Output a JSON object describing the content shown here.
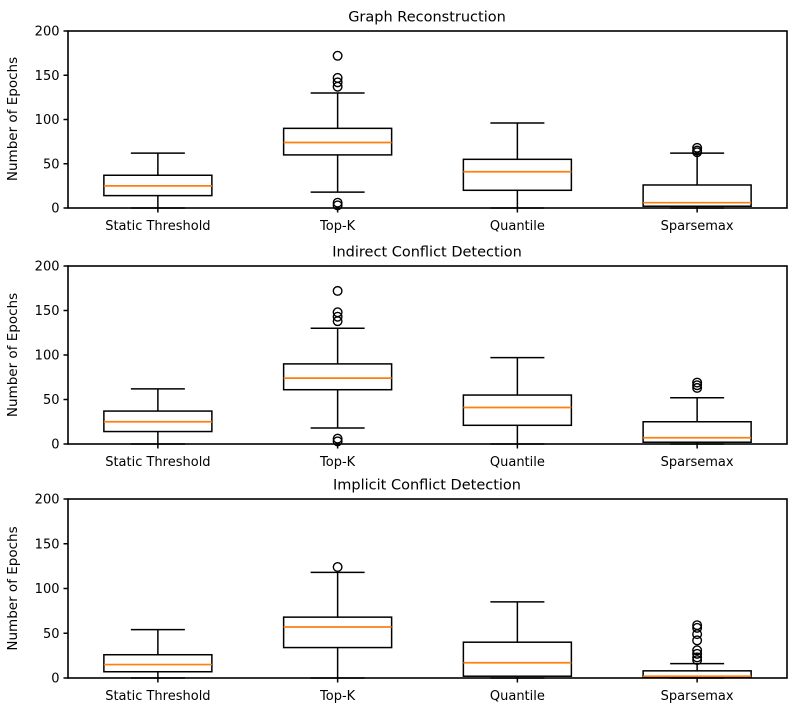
{
  "figure": {
    "background": "#ffffff",
    "axis_color": "#000000",
    "box_color": "#000000",
    "median_color": "#ff7f0e",
    "outlier_marker": "open-circle"
  },
  "chart_data": [
    {
      "type": "boxplot",
      "title": "Graph Reconstruction",
      "ylabel": "Number of Epochs",
      "xlabel": "",
      "ylim": [
        0,
        200
      ],
      "yticks": [
        0,
        50,
        100,
        150,
        200
      ],
      "grid": false,
      "categories": [
        "Static Threshold",
        "Top-K",
        "Quantile",
        "Sparsemax"
      ],
      "boxes": [
        {
          "category": "Static Threshold",
          "whislo": 0,
          "q1": 14,
          "med": 25,
          "q3": 37,
          "whishi": 62,
          "fliers": []
        },
        {
          "category": "Top-K",
          "whislo": 18,
          "q1": 60,
          "med": 74,
          "q3": 90,
          "whishi": 130,
          "fliers": [
            172,
            147,
            142,
            137,
            6,
            3
          ]
        },
        {
          "category": "Quantile",
          "whislo": 0,
          "q1": 20,
          "med": 41,
          "q3": 55,
          "whishi": 96,
          "fliers": []
        },
        {
          "category": "Sparsemax",
          "whislo": 0,
          "q1": 2,
          "med": 6,
          "q3": 26,
          "whishi": 62,
          "fliers": [
            63,
            65,
            68
          ]
        }
      ]
    },
    {
      "type": "boxplot",
      "title": "Indirect Conflict Detection",
      "ylabel": "Number of Epochs",
      "xlabel": "",
      "ylim": [
        0,
        200
      ],
      "yticks": [
        0,
        50,
        100,
        150,
        200
      ],
      "grid": false,
      "categories": [
        "Static Threshold",
        "Top-K",
        "Quantile",
        "Sparsemax"
      ],
      "boxes": [
        {
          "category": "Static Threshold",
          "whislo": 0,
          "q1": 14,
          "med": 25,
          "q3": 37,
          "whishi": 62,
          "fliers": []
        },
        {
          "category": "Top-K",
          "whislo": 18,
          "q1": 61,
          "med": 74,
          "q3": 90,
          "whishi": 130,
          "fliers": [
            172,
            148,
            143,
            138,
            6,
            3
          ]
        },
        {
          "category": "Quantile",
          "whislo": 0,
          "q1": 21,
          "med": 41,
          "q3": 55,
          "whishi": 97,
          "fliers": []
        },
        {
          "category": "Sparsemax",
          "whislo": 0,
          "q1": 2,
          "med": 7,
          "q3": 25,
          "whishi": 52,
          "fliers": [
            63,
            66,
            69
          ]
        }
      ]
    },
    {
      "type": "boxplot",
      "title": "Implicit Conflict Detection",
      "ylabel": "Number of Epochs",
      "xlabel": "",
      "ylim": [
        0,
        200
      ],
      "yticks": [
        0,
        50,
        100,
        150,
        200
      ],
      "grid": false,
      "categories": [
        "Static Threshold",
        "Top-K",
        "Quantile",
        "Sparsemax"
      ],
      "boxes": [
        {
          "category": "Static Threshold",
          "whislo": 0,
          "q1": 7,
          "med": 15,
          "q3": 26,
          "whishi": 54,
          "fliers": []
        },
        {
          "category": "Top-K",
          "whislo": 0,
          "q1": 34,
          "med": 57,
          "q3": 68,
          "whishi": 118,
          "fliers": [
            124
          ]
        },
        {
          "category": "Quantile",
          "whislo": 0,
          "q1": 2,
          "med": 17,
          "q3": 40,
          "whishi": 85,
          "fliers": []
        },
        {
          "category": "Sparsemax",
          "whislo": 0,
          "q1": 0.5,
          "med": 2,
          "q3": 8,
          "whishi": 16,
          "fliers": [
            59,
            56,
            49,
            42,
            31,
            27,
            23,
            20
          ]
        }
      ]
    }
  ]
}
